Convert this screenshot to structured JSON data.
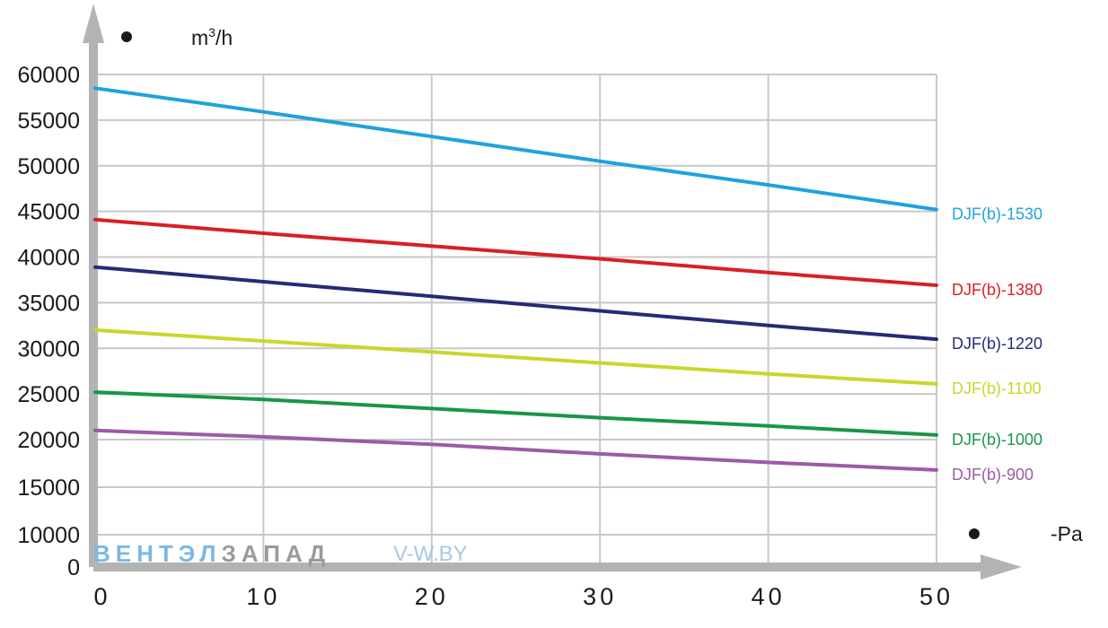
{
  "chart_data": {
    "type": "line",
    "y_unit_label": "m³/h",
    "x_unit_label": "-Pa",
    "x_ticks": [
      "0",
      "10",
      "20",
      "30",
      "40",
      "50"
    ],
    "y_ticks": [
      "0",
      "10000",
      "15000",
      "20000",
      "25000",
      "30000",
      "35000",
      "40000",
      "45000",
      "50000",
      "55000",
      "60000"
    ],
    "xlim": [
      0,
      50
    ],
    "ylim": [
      0,
      60000
    ],
    "grid": true,
    "series": [
      {
        "name": "DJF(b)-1530",
        "color": "#1ea3dc",
        "x": [
          0,
          10,
          20,
          30,
          40,
          50
        ],
        "values": [
          58500,
          55900,
          53200,
          50500,
          47900,
          45200
        ]
      },
      {
        "name": "DJF(b)-1380",
        "color": "#d81f26",
        "x": [
          0,
          10,
          20,
          30,
          40,
          50
        ],
        "values": [
          44100,
          42600,
          41200,
          39800,
          38300,
          36900
        ]
      },
      {
        "name": "DJF(b)-1220",
        "color": "#262a78",
        "x": [
          0,
          10,
          20,
          30,
          40,
          50
        ],
        "values": [
          38900,
          37300,
          35700,
          34100,
          32500,
          31000
        ]
      },
      {
        "name": "DJF(b)-1100",
        "color": "#c9d62c",
        "x": [
          0,
          10,
          20,
          30,
          40,
          50
        ],
        "values": [
          32000,
          30800,
          29600,
          28400,
          27200,
          26100
        ]
      },
      {
        "name": "DJF(b)-1000",
        "color": "#17964a",
        "x": [
          0,
          10,
          20,
          30,
          40,
          50
        ],
        "values": [
          25200,
          24400,
          23400,
          22400,
          21500,
          20500
        ]
      },
      {
        "name": "DJF(b)-900",
        "color": "#9b5ba5",
        "x": [
          0,
          10,
          20,
          30,
          40,
          50
        ],
        "values": [
          21000,
          20300,
          19500,
          18500,
          17600,
          16800
        ]
      }
    ]
  },
  "watermark": {
    "brand_part1": "ВЕНТЭЛ",
    "brand_part2": "ЗАПАД",
    "site": "V-W.BY",
    "brand_color1": "#7bb8e3",
    "brand_color2": "#9a9a9a",
    "site_color": "#a9c8e6"
  },
  "colors": {
    "axis": "#b3b3b3",
    "grid": "#c8c8c8"
  }
}
